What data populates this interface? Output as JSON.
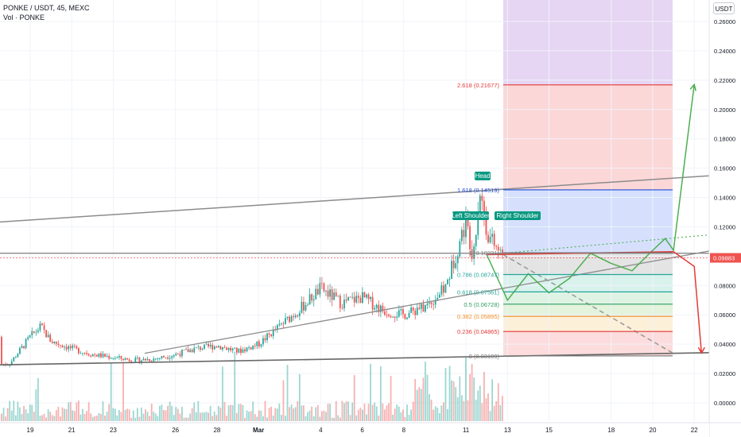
{
  "header": {
    "symbol_line": "PONKE / USDT, 45, MEXC",
    "volume_line": "Vol · PONKE"
  },
  "price_scale": {
    "currency": "USDT"
  },
  "colors": {
    "up": "#26a69a",
    "down": "#ef5350",
    "projection": "#4caf50",
    "drop": "#e53935",
    "trend": "#8c8c8c",
    "fib_blue": "#1e4fd8"
  },
  "chart_data": {
    "type": "candlestick",
    "ylim": [
      -0.012,
      0.272
    ],
    "y_ticks": [
      "0.26000",
      "0.24000",
      "0.22000",
      "0.20000",
      "0.18000",
      "0.16000",
      "0.14000",
      "0.12000",
      "0.10000",
      "0.08000",
      "0.06000",
      "0.04000",
      "0.02000",
      "0.00000"
    ],
    "x_ticks": [
      "19",
      "21",
      "23",
      "26",
      "28",
      "Mar",
      "4",
      "6",
      "8",
      "11",
      "13",
      "15",
      "18",
      "20",
      "22"
    ],
    "last_price": "0.09883",
    "price_path": [
      [
        "Feb 18",
        0.0265
      ],
      [
        "Feb 19",
        0.045
      ],
      [
        "Feb 19",
        0.052
      ],
      [
        "Feb 20",
        0.042
      ],
      [
        "Feb 21",
        0.037
      ],
      [
        "Feb 22",
        0.033
      ],
      [
        "Feb 23",
        0.031
      ],
      [
        "Feb 24",
        0.029
      ],
      [
        "Feb 25",
        0.03
      ],
      [
        "Feb 26",
        0.033
      ],
      [
        "Feb 27",
        0.037
      ],
      [
        "Feb 28",
        0.039
      ],
      [
        "Feb 29",
        0.035
      ],
      [
        "Mar 1",
        0.04
      ],
      [
        "Mar 2",
        0.052
      ],
      [
        "Mar 3",
        0.064
      ],
      [
        "Mar 4",
        0.078
      ],
      [
        "Mar 5",
        0.068
      ],
      [
        "Mar 6",
        0.072
      ],
      [
        "Mar 7",
        0.063
      ],
      [
        "Mar 8",
        0.06
      ],
      [
        "Mar 9",
        0.065
      ],
      [
        "Mar 10",
        0.078
      ],
      [
        "Mar 10",
        0.101
      ],
      [
        "Mar 11",
        0.124
      ],
      [
        "Mar 11",
        0.101
      ],
      [
        "Mar 11",
        0.145
      ],
      [
        "Mar 12",
        0.117
      ],
      [
        "Mar 12",
        0.108
      ],
      [
        "Mar 12",
        0.101
      ]
    ],
    "fibonacci": [
      {
        "ratio": "2.618",
        "price": "0.21677"
      },
      {
        "ratio": "1.618",
        "price": "0.14519"
      },
      {
        "ratio": "1",
        "price": "0.10231"
      },
      {
        "ratio": "0.786",
        "price": "0.08747"
      },
      {
        "ratio": "0.618",
        "price": "0.07561"
      },
      {
        "ratio": "0.5",
        "price": "0.06728"
      },
      {
        "ratio": "0.382",
        "price": "0.05895"
      },
      {
        "ratio": "0.236",
        "price": "0.04865"
      },
      {
        "ratio": "0",
        "price": "0.03199"
      }
    ],
    "annotations": [
      "Head",
      "Left Shoulder",
      "Right Shoulder"
    ],
    "projection_path": [
      [
        "Mar 12",
        0.101
      ],
      [
        "Mar 13",
        0.07
      ],
      [
        "Mar 14",
        0.088
      ],
      [
        "Mar 15",
        0.075
      ],
      [
        "Mar 16",
        0.085
      ],
      [
        "Mar 17",
        0.102
      ],
      [
        "Mar 18",
        0.095
      ],
      [
        "Mar 19",
        0.09
      ],
      [
        "Mar 20",
        0.104
      ],
      [
        "Mar 20",
        0.112
      ],
      [
        "Mar 21",
        0.104
      ],
      [
        "Mar 22",
        0.217
      ]
    ],
    "bearish_path": [
      [
        "Mar 12",
        0.101
      ],
      [
        "Mar 21",
        0.103
      ],
      [
        "Mar 22",
        0.093
      ],
      [
        "Mar 22",
        0.034
      ]
    ]
  }
}
